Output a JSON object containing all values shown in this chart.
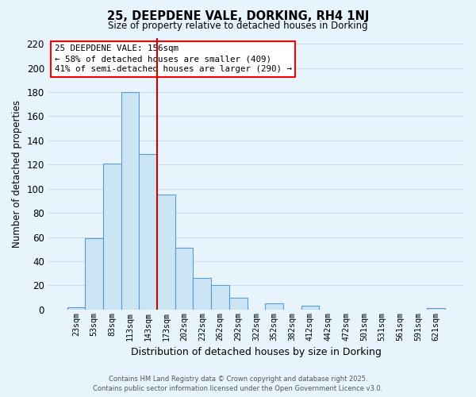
{
  "title": "25, DEEPDENE VALE, DORKING, RH4 1NJ",
  "subtitle": "Size of property relative to detached houses in Dorking",
  "xlabel": "Distribution of detached houses by size in Dorking",
  "ylabel": "Number of detached properties",
  "bin_labels": [
    "23sqm",
    "53sqm",
    "83sqm",
    "113sqm",
    "143sqm",
    "173sqm",
    "202sqm",
    "232sqm",
    "262sqm",
    "292sqm",
    "322sqm",
    "352sqm",
    "382sqm",
    "412sqm",
    "442sqm",
    "472sqm",
    "501sqm",
    "531sqm",
    "561sqm",
    "591sqm",
    "621sqm"
  ],
  "bar_values": [
    2,
    59,
    121,
    180,
    129,
    95,
    51,
    26,
    20,
    10,
    0,
    5,
    0,
    3,
    0,
    0,
    0,
    0,
    0,
    0,
    1
  ],
  "bar_color": "#cce5f5",
  "bar_edge_color": "#5b9bd5",
  "vline_color": "#cc0000",
  "vline_x_idx": 4.5,
  "ylim": [
    0,
    225
  ],
  "yticks": [
    0,
    20,
    40,
    60,
    80,
    100,
    120,
    140,
    160,
    180,
    200,
    220
  ],
  "annotation_title": "25 DEEPDENE VALE: 156sqm",
  "annotation_line1": "← 58% of detached houses are smaller (409)",
  "annotation_line2": "41% of semi-detached houses are larger (290) →",
  "footer_line1": "Contains HM Land Registry data © Crown copyright and database right 2025.",
  "footer_line2": "Contains public sector information licensed under the Open Government Licence v3.0.",
  "bg_color": "#e8f4fc",
  "grid_color": "#c8dcea"
}
